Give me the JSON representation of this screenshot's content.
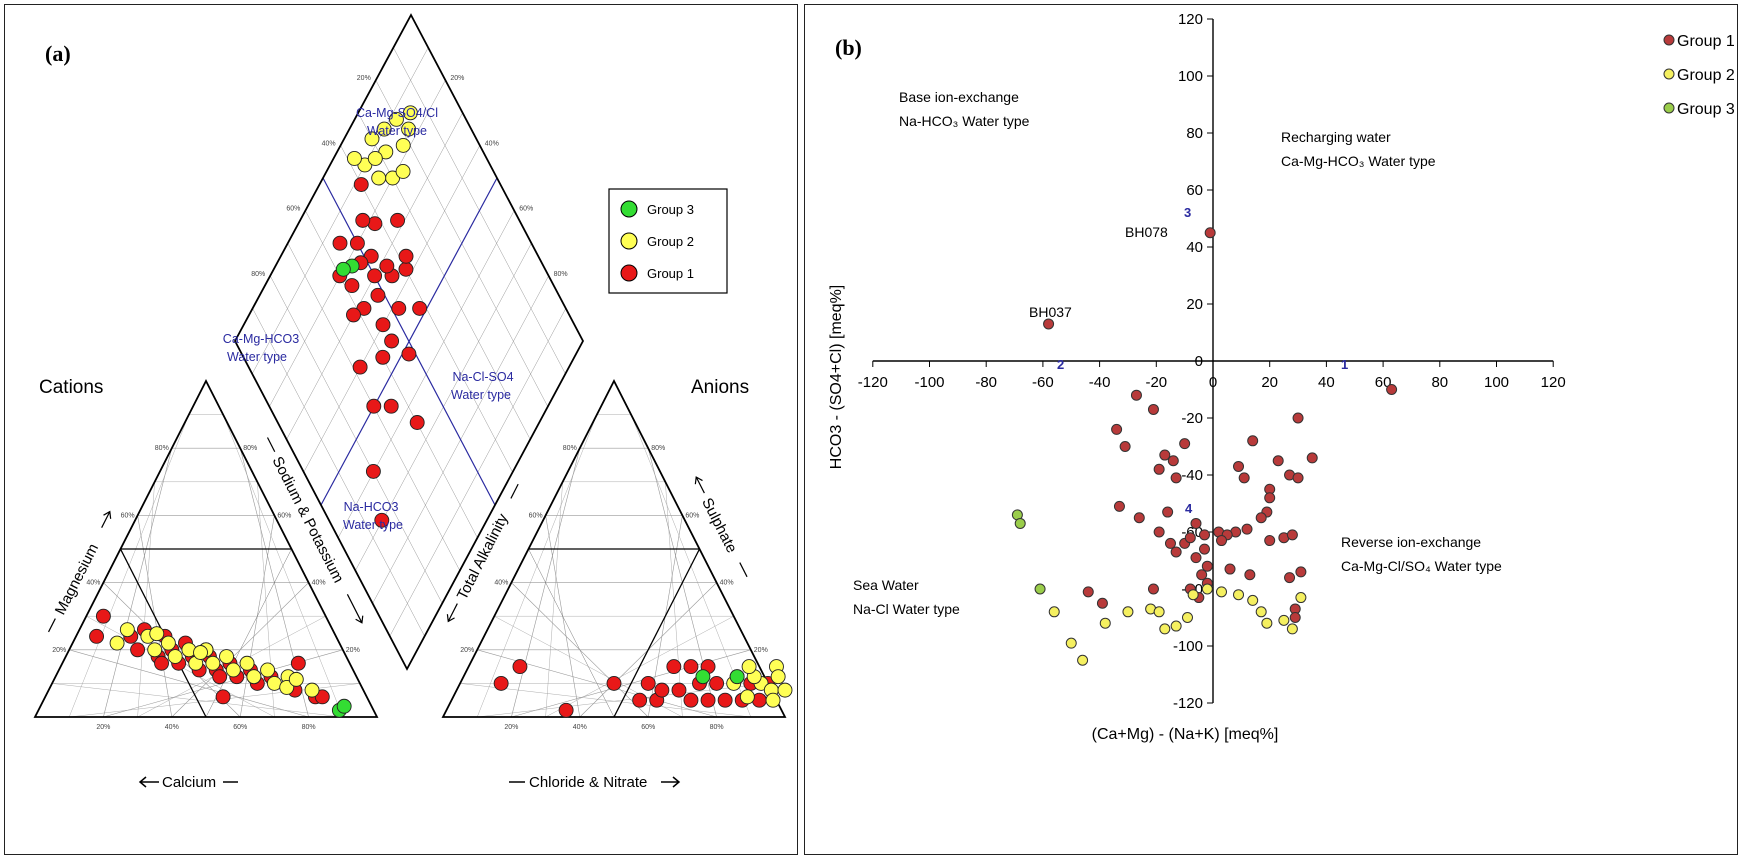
{
  "panel_a": {
    "letter": "(a)",
    "labels": {
      "cations": "Cations",
      "anions": "Anions",
      "magnesium": "Magnesium",
      "calcium": "Calcium",
      "sodium_potassium": "Sodium & Potassium",
      "total_alkalinity": "Total Alkalinity",
      "chloride_nitrate": "Chloride & Nitrate",
      "sulphate": "Sulphate"
    },
    "regions": [
      {
        "line1": "Ca-Mg-SO4/Cl",
        "line2": "Water type"
      },
      {
        "line1": "Ca-Mg-HCO3",
        "line2": "Water type"
      },
      {
        "line1": "Na-Cl-SO4",
        "line2": "Water type"
      },
      {
        "line1": "Na-HCO3",
        "line2": "Water type"
      }
    ],
    "ticks": [
      "80%",
      "60%",
      "40%",
      "20%"
    ],
    "legend": [
      {
        "name": "Group 3",
        "color": "#33dd33"
      },
      {
        "name": "Group 2",
        "color": "#ffff55"
      },
      {
        "name": "Group 1",
        "color": "#e81818"
      }
    ]
  },
  "chart_data": [
    {
      "type": "scatter",
      "subtype": "piper-diagram",
      "title": "",
      "note": "Points given as cation/anion triangle compositions (percent of meq) and diamond position by Ca+Mg and Cl+SO4 percentages; values estimated from the figure.",
      "series": [
        {
          "name": "Group 1",
          "color": "#e81818",
          "cation_points_ca_mg": [
            [
              35,
              75
            ],
            [
              45,
              65
            ],
            [
              50,
              60
            ],
            [
              55,
              55
            ],
            [
              60,
              45
            ],
            [
              55,
              45
            ],
            [
              50,
              50
            ],
            [
              40,
              50
            ],
            [
              65,
              40
            ],
            [
              60,
              35
            ],
            [
              70,
              35
            ],
            [
              75,
              30
            ],
            [
              80,
              25
            ],
            [
              45,
              45
            ],
            [
              40,
              60
            ],
            [
              55,
              35
            ],
            [
              65,
              30
            ],
            [
              70,
              25
            ],
            [
              60,
              50
            ],
            [
              80,
              20
            ],
            [
              45,
              40
            ],
            [
              50,
              40
            ],
            [
              60,
              30
            ],
            [
              70,
              30
            ],
            [
              85,
              15
            ],
            [
              58,
              15
            ],
            [
              85,
              40
            ],
            [
              87,
              15
            ],
            [
              30,
              60
            ]
          ],
          "anion_points_cl_so4": [
            [
              60,
              5
            ],
            [
              65,
              8
            ],
            [
              70,
              5
            ],
            [
              75,
              10
            ],
            [
              80,
              5
            ],
            [
              70,
              15
            ],
            [
              85,
              10
            ],
            [
              90,
              5
            ],
            [
              55,
              10
            ],
            [
              60,
              15
            ],
            [
              75,
              5
            ],
            [
              65,
              15
            ],
            [
              80,
              12
            ],
            [
              85,
              5
            ],
            [
              70,
              10
            ],
            [
              60,
              8
            ],
            [
              55,
              5
            ],
            [
              90,
              10
            ],
            [
              35,
              2
            ],
            [
              15,
              15
            ],
            [
              12,
              10
            ],
            [
              45,
              10
            ]
          ],
          "diamond_points_camg_clso4": [
            [
              72,
              65
            ],
            [
              78,
              58
            ],
            [
              80,
              50
            ],
            [
              70,
              50
            ],
            [
              65,
              55
            ],
            [
              60,
              45
            ],
            [
              55,
              40
            ],
            [
              68,
              42
            ],
            [
              75,
              42
            ],
            [
              80,
              40
            ],
            [
              85,
              45
            ],
            [
              62,
              60
            ],
            [
              58,
              52
            ],
            [
              45,
              35
            ],
            [
              50,
              30
            ],
            [
              40,
              20
            ],
            [
              30,
              15
            ],
            [
              35,
              40
            ],
            [
              88,
              60
            ],
            [
              52,
              58
            ],
            [
              66,
              48
            ],
            [
              74,
              52
            ],
            [
              70,
              38
            ],
            [
              60,
              32
            ],
            [
              55,
              45
            ],
            [
              48,
              48
            ],
            [
              64,
              62
            ],
            [
              82,
              55
            ],
            [
              76,
              48
            ],
            [
              68,
              55
            ]
          ]
        },
        {
          "name": "Group 2",
          "color": "#ffff55",
          "cation_points_ca_mg": [
            [
              40,
              65
            ],
            [
              45,
              60
            ],
            [
              50,
              55
            ],
            [
              55,
              50
            ],
            [
              60,
              50
            ],
            [
              65,
              45
            ],
            [
              70,
              40
            ],
            [
              75,
              35
            ],
            [
              80,
              30
            ],
            [
              45,
              50
            ],
            [
              55,
              40
            ],
            [
              60,
              40
            ],
            [
              70,
              30
            ],
            [
              75,
              25
            ],
            [
              85,
              20
            ],
            [
              35,
              55
            ],
            [
              50,
              45
            ],
            [
              65,
              35
            ],
            [
              78,
              22
            ],
            [
              82,
              28
            ],
            [
              48,
              62
            ],
            [
              58,
              48
            ]
          ],
          "anion_points_cl_so4": [
            [
              88,
              10
            ],
            [
              92,
              8
            ],
            [
              85,
              12
            ],
            [
              90,
              15
            ],
            [
              94,
              5
            ],
            [
              80,
              10
            ],
            [
              86,
              6
            ],
            [
              92,
              12
            ],
            [
              96,
              8
            ],
            [
              82,
              15
            ]
          ],
          "diamond_points_camg_clso4": [
            [
              85,
              85
            ],
            [
              88,
              80
            ],
            [
              82,
              78
            ],
            [
              90,
              75
            ],
            [
              86,
              72
            ],
            [
              92,
              70
            ],
            [
              80,
              70
            ],
            [
              84,
              66
            ],
            [
              90,
              64
            ],
            [
              94,
              62
            ],
            [
              78,
              74
            ],
            [
              88,
              68
            ],
            [
              83,
              82
            ]
          ]
        },
        {
          "name": "Group 3",
          "color": "#33dd33",
          "cation_points_ca_mg": [
            [
              90,
              5
            ],
            [
              92,
              8
            ]
          ],
          "anion_points_cl_so4": [
            [
              70,
              12
            ],
            [
              80,
              12
            ]
          ],
          "diamond_points_camg_clso4": [
            [
              78,
              45
            ],
            [
              80,
              42
            ]
          ]
        }
      ]
    },
    {
      "type": "scatter",
      "title": "",
      "xlabel": "(Ca+Mg)  - (Na+K)  [meq%]",
      "ylabel": "HCO3  -  (SO4+Cl)  [meq%]",
      "xlim": [
        -120,
        120
      ],
      "ylim": [
        -120,
        120
      ],
      "xticks": [
        -120,
        -100,
        -80,
        -60,
        -40,
        -20,
        0,
        20,
        40,
        60,
        80,
        100,
        120
      ],
      "yticks": [
        -120,
        -100,
        -80,
        -60,
        -40,
        -20,
        0,
        20,
        40,
        60,
        80,
        100,
        120
      ],
      "legend_position": "top-right",
      "quadrant_markers": [
        "1",
        "2",
        "3",
        "4"
      ],
      "annotations": [
        {
          "line1": "Base ion-exchange",
          "line2": "Na-HCO₃ Water type",
          "corner": "top-left"
        },
        {
          "line1": "Recharging water",
          "line2": "Ca-Mg-HCO₃ Water type",
          "corner": "top-right"
        },
        {
          "line1": "Sea Water",
          "line2": "Na-Cl Water type",
          "corner": "bottom-left"
        },
        {
          "line1": "Reverse ion-exchange",
          "line2": "Ca-Mg-Cl/SO₄ Water type",
          "corner": "bottom-right"
        }
      ],
      "point_labels": [
        {
          "text": "BH078",
          "x": -1,
          "y": 45
        },
        {
          "text": "BH037",
          "x": -58,
          "y": 13
        }
      ],
      "series": [
        {
          "name": "Group 1",
          "color": "#b83a3a",
          "points": [
            [
              -1,
              45
            ],
            [
              -58,
              13
            ],
            [
              63,
              -10
            ],
            [
              -27,
              -12
            ],
            [
              -21,
              -17
            ],
            [
              -10,
              -29
            ],
            [
              30,
              -20
            ],
            [
              -34,
              -24
            ],
            [
              -31,
              -30
            ],
            [
              -17,
              -33
            ],
            [
              -14,
              -35
            ],
            [
              -19,
              -38
            ],
            [
              -13,
              -41
            ],
            [
              14,
              -28
            ],
            [
              9,
              -37
            ],
            [
              11,
              -41
            ],
            [
              23,
              -35
            ],
            [
              35,
              -34
            ],
            [
              27,
              -40
            ],
            [
              30,
              -41
            ],
            [
              20,
              -45
            ],
            [
              20,
              -48
            ],
            [
              -33,
              -51
            ],
            [
              -26,
              -55
            ],
            [
              -16,
              -53
            ],
            [
              -6,
              -57
            ],
            [
              -10,
              -64
            ],
            [
              -3,
              -61
            ],
            [
              2,
              -60
            ],
            [
              8,
              -60
            ],
            [
              12,
              -59
            ],
            [
              5,
              -61
            ],
            [
              3,
              -63
            ],
            [
              -15,
              -64
            ],
            [
              -13,
              -67
            ],
            [
              -6,
              -69
            ],
            [
              19,
              -53
            ],
            [
              17,
              -55
            ],
            [
              25,
              -62
            ],
            [
              20,
              -63
            ],
            [
              28,
              -61
            ],
            [
              -19,
              -60
            ],
            [
              -8,
              -62
            ],
            [
              -3,
              -66
            ],
            [
              -2,
              -72
            ],
            [
              -4,
              -75
            ],
            [
              6,
              -73
            ],
            [
              13,
              -75
            ],
            [
              27,
              -76
            ],
            [
              31,
              -74
            ],
            [
              -2,
              -78
            ],
            [
              -21,
              -80
            ],
            [
              -44,
              -81
            ],
            [
              -39,
              -85
            ],
            [
              29,
              -87
            ],
            [
              29,
              -90
            ],
            [
              -8,
              -80
            ],
            [
              -5,
              -83
            ]
          ]
        },
        {
          "name": "Group 2",
          "color": "#f5f060",
          "points": [
            [
              -56,
              -88
            ],
            [
              -50,
              -99
            ],
            [
              -46,
              -105
            ],
            [
              -38,
              -92
            ],
            [
              -30,
              -88
            ],
            [
              -22,
              -87
            ],
            [
              -19,
              -88
            ],
            [
              -17,
              -94
            ],
            [
              -13,
              -93
            ],
            [
              -9,
              -90
            ],
            [
              -7,
              -82
            ],
            [
              -2,
              -80
            ],
            [
              3,
              -81
            ],
            [
              9,
              -82
            ],
            [
              14,
              -84
            ],
            [
              17,
              -88
            ],
            [
              19,
              -92
            ],
            [
              25,
              -91
            ],
            [
              28,
              -94
            ],
            [
              31,
              -83
            ]
          ]
        },
        {
          "name": "Group 3",
          "color": "#9acd4a",
          "points": [
            [
              -69,
              -54
            ],
            [
              -68,
              -57
            ],
            [
              -61,
              -80
            ]
          ]
        }
      ]
    }
  ],
  "panel_b": {
    "letter": "(b)"
  }
}
